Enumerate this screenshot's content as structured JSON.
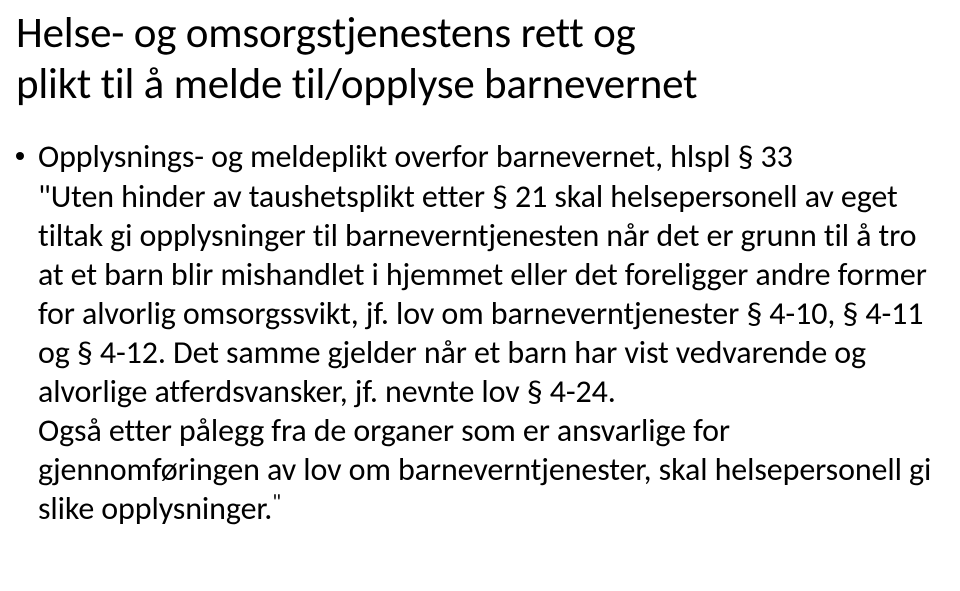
{
  "title_line1": "Helse- og omsorgstjenestens rett og",
  "title_line2": "plikt til å melde til/opplyse barnevernet",
  "bullet": "Opplysnings- og meldeplikt overfor barnevernet, hlspl § 33",
  "quote_open": "\"",
  "quote_body": "Uten hinder av taushetsplikt etter § 21 skal helsepersonell av eget tiltak gi opplysninger til barneverntjenesten når det er grunn til å tro at et barn blir mishandlet i hjemmet eller det foreligger andre former for alvorlig omsorgssvikt, jf. lov om barneverntjenester § 4-10, § 4-11 og § 4-12. Det samme gjelder når et barn har vist vedvarende og alvorlige atferdsvansker, jf. nevnte lov § 4-24.",
  "quote_para2": "Også etter pålegg fra de organer som er ansvarlige for gjennomføringen av lov om barneverntjenester, skal helsepersonell gi slike opplysninger.",
  "quote_close": "\""
}
